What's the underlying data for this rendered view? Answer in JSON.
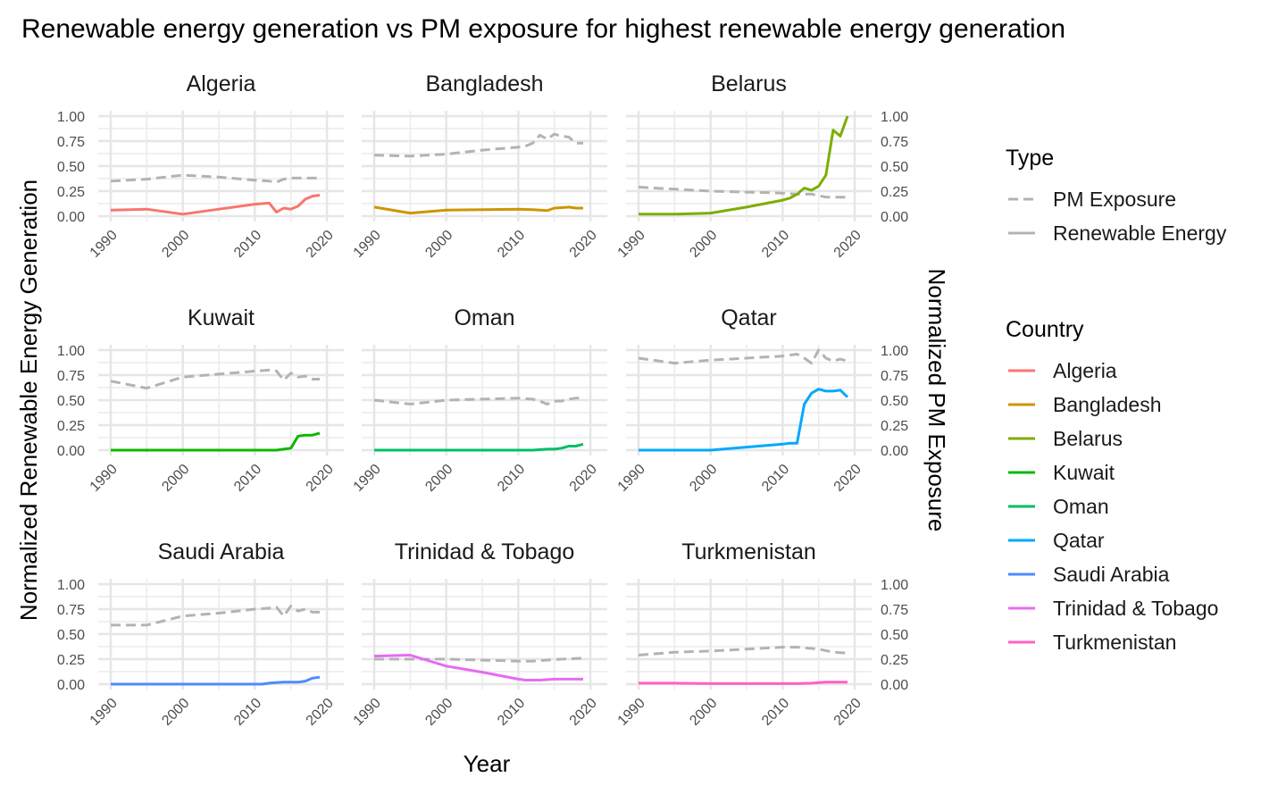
{
  "chart_data": {
    "type": "line",
    "title": "Renewable energy generation vs PM exposure for highest renewable energy generation",
    "xlabel": "Year",
    "ylabel": "Normalized Renewable Energy Generation",
    "ylabel_right": "Normalized PM Exposure",
    "xlim": [
      1990,
      2019
    ],
    "ylim": [
      0,
      1
    ],
    "x_ticks": [
      "1990",
      "2000",
      "2010",
      "2020"
    ],
    "y_ticks": [
      "0.00",
      "0.25",
      "0.50",
      "0.75",
      "1.00"
    ],
    "grid": true,
    "legend_placement": "right",
    "legend": {
      "type_title": "Type",
      "type_entries": [
        {
          "label": "PM Exposure",
          "dash": true
        },
        {
          "label": "Renewable Energy",
          "dash": false
        }
      ],
      "country_title": "Country"
    },
    "pm_color": "#b3b3b3",
    "facets": [
      {
        "country": "Algeria",
        "color": "#F8766D",
        "renewable": [
          [
            1990,
            0.06
          ],
          [
            1995,
            0.07
          ],
          [
            2000,
            0.02
          ],
          [
            2005,
            0.07
          ],
          [
            2010,
            0.12
          ],
          [
            2012,
            0.13
          ],
          [
            2013,
            0.04
          ],
          [
            2014,
            0.08
          ],
          [
            2015,
            0.07
          ],
          [
            2016,
            0.1
          ],
          [
            2017,
            0.17
          ],
          [
            2018,
            0.2
          ],
          [
            2019,
            0.21
          ]
        ],
        "pm": [
          [
            1990,
            0.35
          ],
          [
            1995,
            0.37
          ],
          [
            2000,
            0.41
          ],
          [
            2005,
            0.39
          ],
          [
            2010,
            0.36
          ],
          [
            2012,
            0.35
          ],
          [
            2013,
            0.34
          ],
          [
            2014,
            0.37
          ],
          [
            2015,
            0.38
          ],
          [
            2016,
            0.38
          ],
          [
            2017,
            0.38
          ],
          [
            2018,
            0.38
          ],
          [
            2019,
            0.38
          ]
        ]
      },
      {
        "country": "Bangladesh",
        "color": "#CD9600",
        "renewable": [
          [
            1990,
            0.09
          ],
          [
            1995,
            0.03
          ],
          [
            2000,
            0.06
          ],
          [
            2005,
            0.065
          ],
          [
            2010,
            0.07
          ],
          [
            2012,
            0.065
          ],
          [
            2013,
            0.06
          ],
          [
            2014,
            0.055
          ],
          [
            2015,
            0.08
          ],
          [
            2016,
            0.085
          ],
          [
            2017,
            0.09
          ],
          [
            2018,
            0.08
          ],
          [
            2019,
            0.08
          ]
        ],
        "pm": [
          [
            1990,
            0.61
          ],
          [
            1995,
            0.6
          ],
          [
            2000,
            0.62
          ],
          [
            2005,
            0.66
          ],
          [
            2010,
            0.69
          ],
          [
            2011,
            0.7
          ],
          [
            2012,
            0.73
          ],
          [
            2013,
            0.81
          ],
          [
            2014,
            0.77
          ],
          [
            2015,
            0.82
          ],
          [
            2016,
            0.8
          ],
          [
            2017,
            0.79
          ],
          [
            2018,
            0.73
          ],
          [
            2019,
            0.73
          ]
        ]
      },
      {
        "country": "Belarus",
        "color": "#7CAE00",
        "renewable": [
          [
            1990,
            0.02
          ],
          [
            1995,
            0.02
          ],
          [
            2000,
            0.03
          ],
          [
            2005,
            0.09
          ],
          [
            2010,
            0.16
          ],
          [
            2011,
            0.18
          ],
          [
            2012,
            0.22
          ],
          [
            2013,
            0.28
          ],
          [
            2014,
            0.26
          ],
          [
            2015,
            0.3
          ],
          [
            2016,
            0.41
          ],
          [
            2017,
            0.86
          ],
          [
            2018,
            0.8
          ],
          [
            2019,
            1.0
          ]
        ],
        "pm": [
          [
            1990,
            0.29
          ],
          [
            1995,
            0.27
          ],
          [
            2000,
            0.25
          ],
          [
            2005,
            0.24
          ],
          [
            2010,
            0.23
          ],
          [
            2012,
            0.22
          ],
          [
            2014,
            0.22
          ],
          [
            2016,
            0.19
          ],
          [
            2017,
            0.19
          ],
          [
            2018,
            0.19
          ],
          [
            2019,
            0.19
          ]
        ]
      },
      {
        "country": "Kuwait",
        "color": "#0CB702",
        "renewable": [
          [
            1990,
            0.0
          ],
          [
            1995,
            0.0
          ],
          [
            2000,
            0.0
          ],
          [
            2005,
            0.0
          ],
          [
            2010,
            0.0
          ],
          [
            2012,
            0.0
          ],
          [
            2013,
            0.0
          ],
          [
            2014,
            0.01
          ],
          [
            2015,
            0.02
          ],
          [
            2016,
            0.14
          ],
          [
            2017,
            0.15
          ],
          [
            2018,
            0.15
          ],
          [
            2019,
            0.17
          ]
        ],
        "pm": [
          [
            1990,
            0.69
          ],
          [
            1995,
            0.62
          ],
          [
            2000,
            0.73
          ],
          [
            2005,
            0.76
          ],
          [
            2010,
            0.79
          ],
          [
            2012,
            0.8
          ],
          [
            2013,
            0.79
          ],
          [
            2014,
            0.7
          ],
          [
            2015,
            0.77
          ],
          [
            2016,
            0.73
          ],
          [
            2017,
            0.74
          ],
          [
            2018,
            0.71
          ],
          [
            2019,
            0.71
          ]
        ]
      },
      {
        "country": "Oman",
        "color": "#00BE67",
        "renewable": [
          [
            1990,
            0.0
          ],
          [
            1995,
            0.0
          ],
          [
            2000,
            0.0
          ],
          [
            2005,
            0.0
          ],
          [
            2010,
            0.0
          ],
          [
            2012,
            0.0
          ],
          [
            2014,
            0.01
          ],
          [
            2015,
            0.01
          ],
          [
            2016,
            0.02
          ],
          [
            2017,
            0.04
          ],
          [
            2018,
            0.04
          ],
          [
            2019,
            0.06
          ]
        ],
        "pm": [
          [
            1990,
            0.5
          ],
          [
            1995,
            0.46
          ],
          [
            2000,
            0.5
          ],
          [
            2005,
            0.51
          ],
          [
            2010,
            0.52
          ],
          [
            2012,
            0.51
          ],
          [
            2013,
            0.49
          ],
          [
            2014,
            0.46
          ],
          [
            2015,
            0.49
          ],
          [
            2016,
            0.49
          ],
          [
            2017,
            0.51
          ],
          [
            2018,
            0.52
          ],
          [
            2019,
            0.52
          ]
        ]
      },
      {
        "country": "Qatar",
        "color": "#00A9FF",
        "renewable": [
          [
            1990,
            0.0
          ],
          [
            1995,
            0.0
          ],
          [
            2000,
            0.0
          ],
          [
            2005,
            0.03
          ],
          [
            2010,
            0.06
          ],
          [
            2011,
            0.07
          ],
          [
            2012,
            0.07
          ],
          [
            2013,
            0.46
          ],
          [
            2014,
            0.57
          ],
          [
            2015,
            0.61
          ],
          [
            2016,
            0.59
          ],
          [
            2017,
            0.59
          ],
          [
            2018,
            0.6
          ],
          [
            2019,
            0.53
          ]
        ],
        "pm": [
          [
            1990,
            0.92
          ],
          [
            1995,
            0.87
          ],
          [
            2000,
            0.9
          ],
          [
            2005,
            0.92
          ],
          [
            2010,
            0.94
          ],
          [
            2012,
            0.96
          ],
          [
            2013,
            0.92
          ],
          [
            2014,
            0.87
          ],
          [
            2015,
            1.0
          ],
          [
            2016,
            0.92
          ],
          [
            2017,
            0.89
          ],
          [
            2018,
            0.91
          ],
          [
            2019,
            0.89
          ]
        ]
      },
      {
        "country": "Saudi Arabia",
        "color": "#4C8BFF",
        "renewable": [
          [
            1990,
            0.0
          ],
          [
            1995,
            0.0
          ],
          [
            2000,
            0.0
          ],
          [
            2005,
            0.0
          ],
          [
            2010,
            0.0
          ],
          [
            2011,
            0.0
          ],
          [
            2012,
            0.01
          ],
          [
            2013,
            0.015
          ],
          [
            2014,
            0.02
          ],
          [
            2015,
            0.02
          ],
          [
            2016,
            0.02
          ],
          [
            2017,
            0.03
          ],
          [
            2018,
            0.06
          ],
          [
            2019,
            0.07
          ]
        ],
        "pm": [
          [
            1990,
            0.59
          ],
          [
            1995,
            0.59
          ],
          [
            2000,
            0.68
          ],
          [
            2005,
            0.71
          ],
          [
            2010,
            0.75
          ],
          [
            2012,
            0.76
          ],
          [
            2013,
            0.77
          ],
          [
            2014,
            0.68
          ],
          [
            2015,
            0.78
          ],
          [
            2016,
            0.73
          ],
          [
            2017,
            0.75
          ],
          [
            2018,
            0.72
          ],
          [
            2019,
            0.72
          ]
        ]
      },
      {
        "country": "Trinidad & Tobago",
        "color": "#E76BF3",
        "renewable": [
          [
            1990,
            0.28
          ],
          [
            1995,
            0.29
          ],
          [
            2000,
            0.18
          ],
          [
            2005,
            0.12
          ],
          [
            2010,
            0.05
          ],
          [
            2011,
            0.04
          ],
          [
            2012,
            0.04
          ],
          [
            2013,
            0.04
          ],
          [
            2015,
            0.05
          ],
          [
            2017,
            0.05
          ],
          [
            2019,
            0.05
          ]
        ],
        "pm": [
          [
            1990,
            0.25
          ],
          [
            1995,
            0.25
          ],
          [
            2000,
            0.25
          ],
          [
            2005,
            0.24
          ],
          [
            2010,
            0.23
          ],
          [
            2012,
            0.23
          ],
          [
            2014,
            0.24
          ],
          [
            2016,
            0.25
          ],
          [
            2019,
            0.26
          ]
        ]
      },
      {
        "country": "Turkmenistan",
        "color": "#FF61C3",
        "renewable": [
          [
            1990,
            0.01
          ],
          [
            1995,
            0.01
          ],
          [
            2000,
            0.005
          ],
          [
            2005,
            0.005
          ],
          [
            2010,
            0.005
          ],
          [
            2012,
            0.005
          ],
          [
            2014,
            0.01
          ],
          [
            2016,
            0.02
          ],
          [
            2019,
            0.02
          ]
        ],
        "pm": [
          [
            1990,
            0.29
          ],
          [
            1995,
            0.32
          ],
          [
            2000,
            0.33
          ],
          [
            2005,
            0.35
          ],
          [
            2010,
            0.37
          ],
          [
            2012,
            0.37
          ],
          [
            2015,
            0.35
          ],
          [
            2017,
            0.32
          ],
          [
            2019,
            0.31
          ]
        ]
      }
    ]
  }
}
